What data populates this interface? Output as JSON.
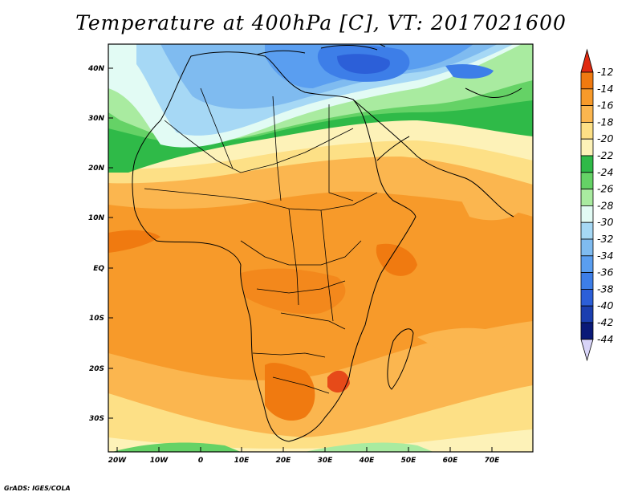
{
  "title": "Temperature at 400hPa [C], VT: 2017021600",
  "credit": "GrADS: IGES/COLA",
  "map": {
    "lat_labels": [
      "40N",
      "30N",
      "20N",
      "10N",
      "EQ",
      "10S",
      "20S",
      "30S"
    ],
    "lon_labels": [
      "20W",
      "10W",
      "0",
      "10E",
      "20E",
      "30E",
      "40E",
      "50E",
      "60E",
      "70E"
    ]
  },
  "colorbar": {
    "levels": [
      "-12",
      "-14",
      "-16",
      "-18",
      "-20",
      "-22",
      "-24",
      "-26",
      "-28",
      "-30",
      "-32",
      "-34",
      "-36",
      "-38",
      "-40",
      "-42",
      "-44"
    ],
    "colors": [
      "#e64a19",
      "#f07a10",
      "#f79a2a",
      "#fbb64f",
      "#fde086",
      "#fdf2b8",
      "#2fba48",
      "#65d266",
      "#a9eba0",
      "#e2fbf4",
      "#a6d8f5",
      "#7fbbf0",
      "#5a9ef0",
      "#3d7ee8",
      "#2c5fd8",
      "#1b3fb0",
      "#0a1a78"
    ],
    "top_triangle_color": "#e02a10",
    "bottom_triangle_color": "#d8d4f8"
  }
}
